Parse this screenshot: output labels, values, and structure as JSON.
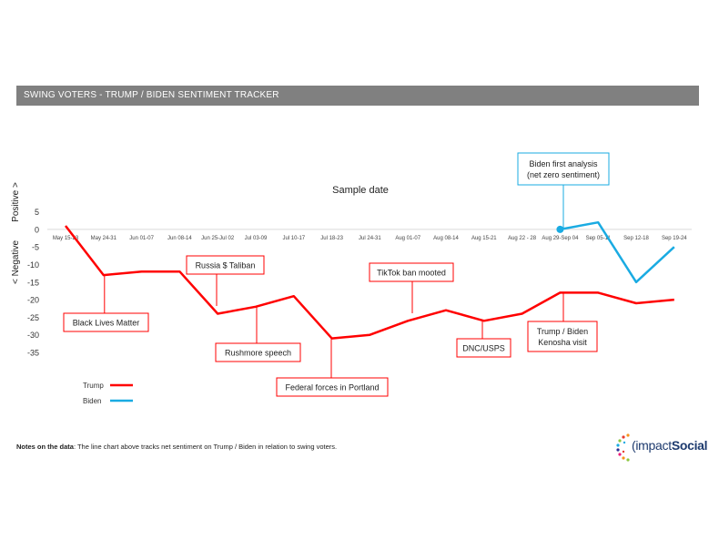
{
  "header": {
    "title": "SWING VOTERS - TRUMP / BIDEN SENTIMENT TRACKER"
  },
  "notes": {
    "label": "Notes on the data",
    "text": ": The line chart above tracks net sentiment on Trump / Biden in relation to swing voters."
  },
  "logo": {
    "part1": "impact",
    "part2": "Social",
    "paren": "("
  },
  "chart_data": {
    "type": "line",
    "title": "Sample date",
    "ylabel_positive": "Positive >",
    "ylabel_negative": "< Negative",
    "ylim": [
      -35,
      5
    ],
    "yticks": [
      5,
      0,
      -5,
      -10,
      -15,
      -20,
      -25,
      -30,
      -35
    ],
    "categories": [
      "May 15-23",
      "May 24-31",
      "Jun 01-07",
      "Jun 08-14",
      "Jun 25-Jul 02",
      "Jul 03-09",
      "Jul 10-17",
      "Jul 18-23",
      "Jul 24-31",
      "Aug 01-07",
      "Aug 08-14",
      "Aug 15-21",
      "Aug 22 - 28",
      "Aug 29-Sep 04",
      "Sep 05-11",
      "Sep 12-18",
      "Sep 19-24"
    ],
    "series": [
      {
        "name": "Trump",
        "color": "#ff0000",
        "values": [
          1,
          -13,
          -12,
          -12,
          -24,
          -22,
          -19,
          -31,
          -30,
          -26,
          -23,
          -26,
          -24,
          -18,
          -18,
          -21,
          -20
        ]
      },
      {
        "name": "Biden",
        "color": "#1aabe2",
        "values": [
          null,
          null,
          null,
          null,
          null,
          null,
          null,
          null,
          null,
          null,
          null,
          null,
          null,
          0,
          2,
          -15,
          -5
        ]
      }
    ],
    "annotations": [
      {
        "text": "Black Lives Matter",
        "index": 1,
        "series": "Trump",
        "color": "#ff0000"
      },
      {
        "text": "Russia $ Taliban",
        "index": 4,
        "series": "Trump",
        "color": "#ff0000"
      },
      {
        "text": "Rushmore speech",
        "index": 5,
        "series": "Trump",
        "color": "#ff0000"
      },
      {
        "text": "Federal forces in Portland",
        "index": 7,
        "series": "Trump",
        "color": "#ff0000"
      },
      {
        "text": "TikTok ban mooted",
        "index": 9,
        "series": "Trump",
        "color": "#ff0000"
      },
      {
        "text": "DNC/USPS",
        "index": 11,
        "series": "Trump",
        "color": "#ff0000"
      },
      {
        "text": "Trump / Biden Kenosha visit",
        "lines": [
          "Trump / Biden",
          "Kenosha visit"
        ],
        "index": 13,
        "series": "Trump",
        "color": "#ff0000"
      },
      {
        "text": "Biden first analysis (net zero sentiment)",
        "lines": [
          "Biden first analysis",
          "(net zero sentiment)"
        ],
        "index": 13,
        "series": "Biden",
        "color": "#1aabe2"
      }
    ],
    "legend": {
      "position": "bottom-left",
      "items": [
        "Trump",
        "Biden"
      ]
    },
    "grid": true
  }
}
